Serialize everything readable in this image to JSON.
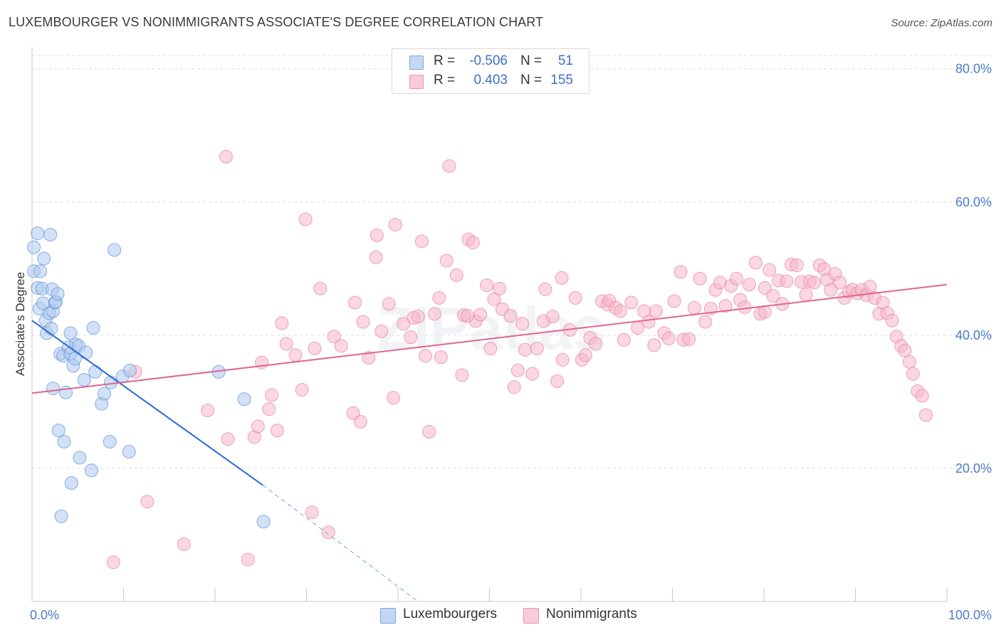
{
  "title": "LUXEMBOURGER VS NONIMMIGRANTS ASSOCIATE'S DEGREE CORRELATION CHART",
  "source": "Source: ZipAtlas.com",
  "watermark": "ZIPatlas",
  "legend": {
    "rows": [
      {
        "r_label": "R =",
        "r_value": "-0.506",
        "n_label": "N =",
        "n_value": "51",
        "color": "#adc8ef"
      },
      {
        "r_label": "R =",
        "r_value": "0.403",
        "n_label": "N =",
        "n_value": "155",
        "color": "#f6b6c9"
      }
    ]
  },
  "bottom_legend": [
    {
      "label": "Luxembourgers",
      "color": "#adc8ef"
    },
    {
      "label": "Nonimmigrants",
      "color": "#f6b6c9"
    }
  ],
  "chart_data": {
    "type": "scatter",
    "title": "LUXEMBOURGER VS NONIMMIGRANTS ASSOCIATE'S DEGREE CORRELATION CHART",
    "xlabel": "",
    "ylabel": "Associate's Degree",
    "xlim": [
      0,
      100
    ],
    "ylim": [
      0,
      82
    ],
    "x_tick_labels": [
      "0.0%",
      "100.0%"
    ],
    "y_ticks": [
      20,
      40,
      60,
      80
    ],
    "y_tick_labels": [
      "20.0%",
      "40.0%",
      "60.0%",
      "80.0%"
    ],
    "grid": true,
    "legend_position": "top-center",
    "series": [
      {
        "name": "Luxembourgers",
        "color": "#adc8ef",
        "stroke": "#5b8fd9",
        "r": -0.506,
        "n": 51,
        "trend": {
          "x0": 0,
          "y0": 42.2,
          "x1": 25.2,
          "y1": 17.5,
          "dash_x1": 42.2,
          "dash_y1": 0
        },
        "points": [
          [
            0.2,
            49.6
          ],
          [
            0.2,
            53.2
          ],
          [
            0.6,
            55.3
          ],
          [
            0.6,
            47.1
          ],
          [
            0.8,
            44.0
          ],
          [
            0.9,
            49.6
          ],
          [
            1.1,
            47.0
          ],
          [
            1.2,
            44.8
          ],
          [
            1.3,
            51.5
          ],
          [
            1.5,
            42.2
          ],
          [
            1.6,
            40.3
          ],
          [
            1.9,
            43.3
          ],
          [
            2.0,
            55.1
          ],
          [
            2.1,
            41.0
          ],
          [
            2.2,
            46.9
          ],
          [
            2.3,
            43.6
          ],
          [
            2.5,
            44.9
          ],
          [
            2.6,
            45.0
          ],
          [
            2.8,
            46.2
          ],
          [
            2.3,
            32.0
          ],
          [
            2.9,
            25.7
          ],
          [
            3.1,
            37.2
          ],
          [
            3.2,
            12.8
          ],
          [
            3.4,
            36.9
          ],
          [
            3.5,
            24.0
          ],
          [
            3.7,
            31.4
          ],
          [
            4.0,
            38.2
          ],
          [
            4.2,
            37.2
          ],
          [
            4.2,
            40.3
          ],
          [
            4.3,
            17.8
          ],
          [
            4.5,
            35.4
          ],
          [
            4.7,
            36.5
          ],
          [
            4.8,
            38.6
          ],
          [
            5.1,
            38.4
          ],
          [
            5.2,
            21.6
          ],
          [
            5.7,
            33.3
          ],
          [
            5.9,
            37.4
          ],
          [
            6.5,
            19.7
          ],
          [
            6.7,
            41.1
          ],
          [
            6.9,
            34.5
          ],
          [
            7.6,
            29.7
          ],
          [
            7.9,
            31.2
          ],
          [
            8.5,
            24.0
          ],
          [
            8.6,
            32.9
          ],
          [
            9.0,
            52.8
          ],
          [
            9.9,
            33.8
          ],
          [
            10.6,
            22.5
          ],
          [
            10.7,
            34.7
          ],
          [
            20.4,
            34.5
          ],
          [
            23.2,
            30.4
          ],
          [
            25.3,
            12.0
          ]
        ]
      },
      {
        "name": "Nonimmigrants",
        "color": "#f6b6c9",
        "stroke": "#e7809f",
        "r": 0.403,
        "n": 155,
        "trend": {
          "x0": 0,
          "y0": 31.3,
          "x1": 100,
          "y1": 47.6
        },
        "points": [
          [
            8.9,
            5.9
          ],
          [
            11.3,
            34.5
          ],
          [
            12.6,
            15.0
          ],
          [
            16.6,
            8.6
          ],
          [
            19.2,
            28.7
          ],
          [
            21.2,
            66.8
          ],
          [
            21.4,
            24.4
          ],
          [
            23.6,
            6.3
          ],
          [
            24.3,
            24.7
          ],
          [
            24.7,
            26.3
          ],
          [
            25.1,
            35.9
          ],
          [
            25.9,
            28.9
          ],
          [
            26.2,
            31.0
          ],
          [
            26.8,
            25.7
          ],
          [
            27.3,
            41.8
          ],
          [
            27.8,
            38.7
          ],
          [
            28.8,
            37.0
          ],
          [
            29.5,
            31.8
          ],
          [
            29.9,
            57.4
          ],
          [
            30.6,
            13.4
          ],
          [
            30.9,
            38.0
          ],
          [
            31.5,
            47.0
          ],
          [
            32.4,
            10.4
          ],
          [
            33.0,
            39.8
          ],
          [
            33.8,
            38.4
          ],
          [
            35.1,
            28.3
          ],
          [
            35.3,
            44.9
          ],
          [
            35.9,
            27.0
          ],
          [
            36.2,
            42.0
          ],
          [
            36.8,
            36.6
          ],
          [
            37.6,
            51.7
          ],
          [
            37.7,
            55.0
          ],
          [
            38.2,
            40.6
          ],
          [
            39.0,
            44.7
          ],
          [
            39.5,
            30.6
          ],
          [
            39.7,
            56.6
          ],
          [
            40.6,
            41.7
          ],
          [
            41.4,
            39.7
          ],
          [
            41.7,
            42.6
          ],
          [
            42.2,
            42.8
          ],
          [
            42.6,
            54.1
          ],
          [
            43.0,
            36.9
          ],
          [
            43.4,
            25.5
          ],
          [
            44.0,
            43.2
          ],
          [
            44.5,
            45.6
          ],
          [
            44.7,
            36.7
          ],
          [
            45.3,
            51.2
          ],
          [
            45.6,
            65.4
          ],
          [
            46.4,
            49.0
          ],
          [
            47.0,
            34.0
          ],
          [
            47.2,
            43.0
          ],
          [
            47.7,
            54.4
          ],
          [
            48.2,
            53.9
          ],
          [
            48.5,
            42.1
          ],
          [
            49.0,
            43.1
          ],
          [
            49.7,
            47.5
          ],
          [
            50.1,
            38.0
          ],
          [
            50.5,
            45.4
          ],
          [
            51.1,
            47.0
          ],
          [
            51.4,
            43.9
          ],
          [
            52.3,
            42.9
          ],
          [
            52.7,
            32.2
          ],
          [
            53.1,
            34.7
          ],
          [
            53.6,
            41.7
          ],
          [
            53.9,
            37.8
          ],
          [
            54.7,
            34.2
          ],
          [
            55.2,
            38.0
          ],
          [
            55.9,
            42.1
          ],
          [
            56.1,
            46.9
          ],
          [
            56.9,
            42.8
          ],
          [
            57.4,
            33.1
          ],
          [
            57.9,
            48.6
          ],
          [
            58.0,
            36.3
          ],
          [
            58.8,
            40.8
          ],
          [
            59.4,
            45.6
          ],
          [
            60.1,
            36.3
          ],
          [
            60.5,
            37.0
          ],
          [
            61.0,
            39.6
          ],
          [
            61.6,
            38.7
          ],
          [
            62.3,
            45.1
          ],
          [
            62.9,
            44.6
          ],
          [
            63.1,
            45.2
          ],
          [
            63.8,
            44.1
          ],
          [
            64.3,
            43.6
          ],
          [
            64.7,
            39.3
          ],
          [
            65.5,
            44.9
          ],
          [
            66.2,
            41.1
          ],
          [
            66.9,
            43.6
          ],
          [
            67.4,
            42.0
          ],
          [
            68.0,
            38.5
          ],
          [
            68.2,
            43.6
          ],
          [
            69.1,
            40.3
          ],
          [
            69.6,
            39.5
          ],
          [
            70.2,
            45.1
          ],
          [
            70.9,
            49.5
          ],
          [
            71.2,
            39.3
          ],
          [
            71.8,
            39.4
          ],
          [
            72.4,
            44.1
          ],
          [
            73.0,
            48.5
          ],
          [
            73.6,
            42.0
          ],
          [
            74.2,
            44.0
          ],
          [
            74.7,
            46.8
          ],
          [
            75.2,
            47.9
          ],
          [
            75.8,
            44.4
          ],
          [
            76.4,
            47.4
          ],
          [
            77.0,
            48.5
          ],
          [
            77.4,
            45.3
          ],
          [
            77.9,
            44.2
          ],
          [
            78.4,
            47.6
          ],
          [
            79.1,
            50.9
          ],
          [
            79.6,
            43.2
          ],
          [
            80.1,
            47.1
          ],
          [
            80.6,
            49.8
          ],
          [
            81.0,
            45.9
          ],
          [
            81.6,
            48.2
          ],
          [
            82.0,
            44.7
          ],
          [
            82.5,
            48.1
          ],
          [
            83.0,
            50.6
          ],
          [
            83.6,
            50.5
          ],
          [
            84.1,
            48.0
          ],
          [
            84.6,
            46.1
          ],
          [
            85.0,
            48.1
          ],
          [
            85.5,
            47.9
          ],
          [
            86.1,
            50.5
          ],
          [
            86.6,
            49.9
          ],
          [
            86.9,
            48.3
          ],
          [
            87.3,
            46.8
          ],
          [
            87.8,
            49.2
          ],
          [
            88.3,
            47.9
          ],
          [
            88.8,
            45.6
          ],
          [
            89.3,
            46.5
          ],
          [
            89.7,
            46.8
          ],
          [
            90.2,
            46.3
          ],
          [
            90.7,
            46.8
          ],
          [
            91.2,
            46.0
          ],
          [
            91.6,
            47.3
          ],
          [
            92.1,
            45.6
          ],
          [
            92.6,
            43.2
          ],
          [
            93.0,
            44.9
          ],
          [
            93.5,
            43.3
          ],
          [
            94.0,
            42.2
          ],
          [
            94.5,
            39.8
          ],
          [
            95.0,
            38.4
          ],
          [
            95.4,
            37.7
          ],
          [
            95.9,
            36.0
          ],
          [
            96.3,
            34.2
          ],
          [
            96.8,
            31.6
          ],
          [
            97.3,
            30.9
          ],
          [
            97.7,
            28.0
          ],
          [
            80.1,
            43.5
          ],
          [
            47.6,
            42.9
          ]
        ]
      }
    ]
  }
}
